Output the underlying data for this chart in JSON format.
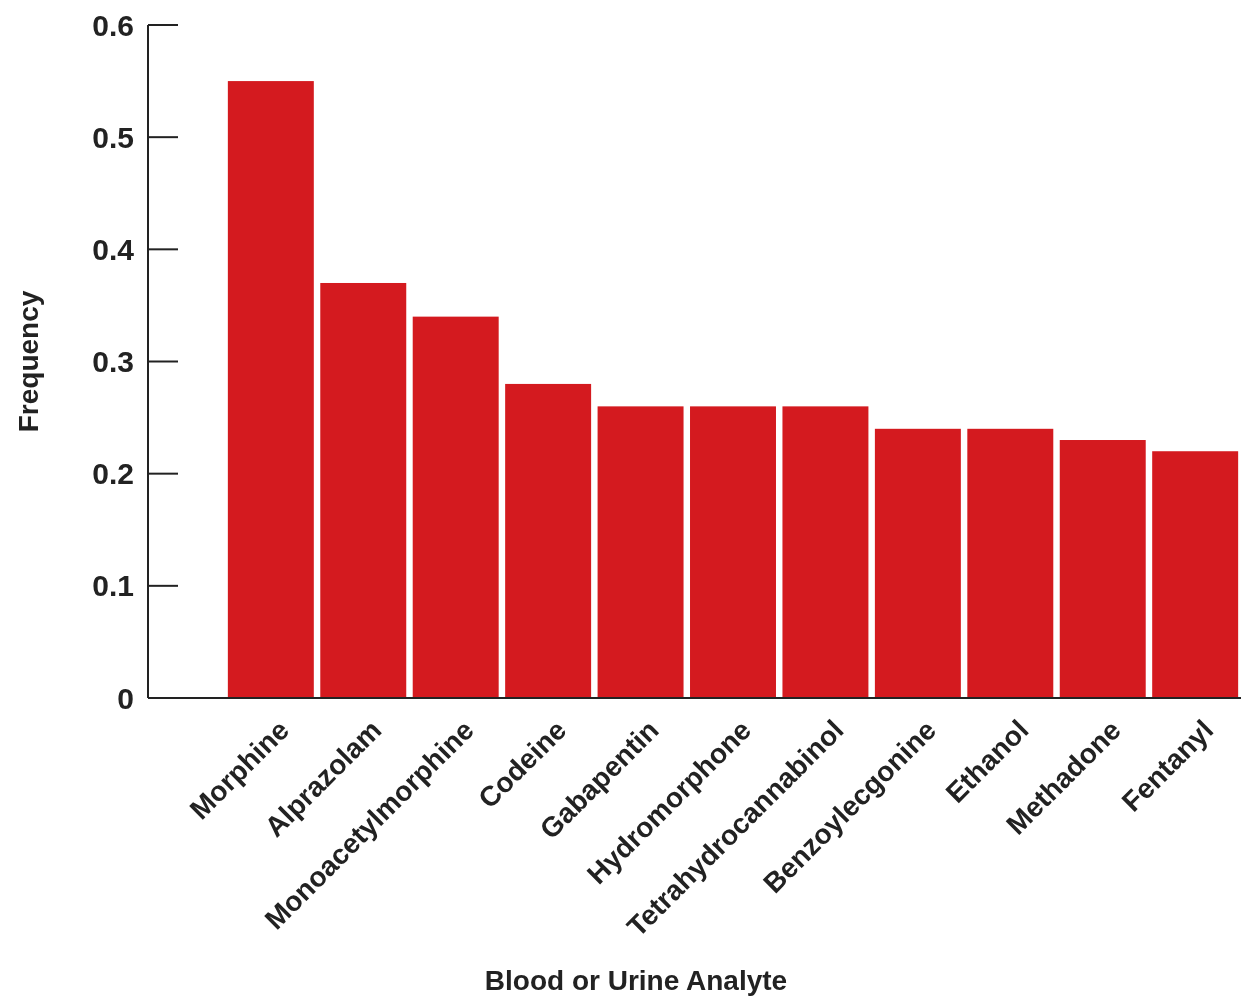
{
  "chart_data": {
    "type": "bar",
    "xlabel": "Blood or Urine Analyte",
    "ylabel": "Frequency",
    "categories": [
      "Morphine",
      "Alprazolam",
      "Monoacetylmorphine",
      "Codeine",
      "Gabapentin",
      "Hydromorphone",
      "Tetrahydrocannabinol",
      "Benzoylecgonine",
      "Ethanol",
      "Methadone",
      "Fentanyl"
    ],
    "values": [
      0.55,
      0.37,
      0.34,
      0.28,
      0.26,
      0.26,
      0.26,
      0.24,
      0.24,
      0.23,
      0.22
    ],
    "color": "#d41a1f",
    "ylim": [
      0,
      0.6
    ],
    "yticks": [
      0,
      0.1,
      0.2,
      0.3,
      0.4,
      0.5,
      0.6
    ],
    "grid": false
  }
}
